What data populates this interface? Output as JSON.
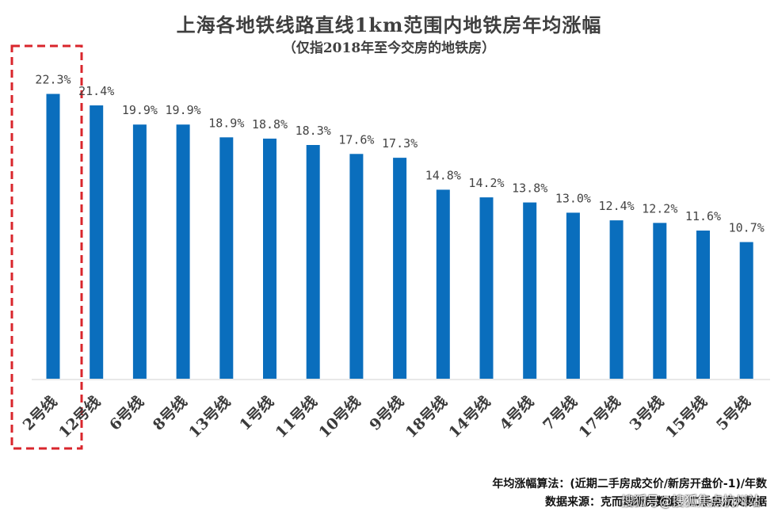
{
  "chart_data": {
    "type": "bar",
    "title": "上海各地铁线路直线1km范围内地铁房年均涨幅",
    "subtitle": "（仅指2018年至今交房的地铁房）",
    "categories": [
      "2号线",
      "12号线",
      "6号线",
      "8号线",
      "13号线",
      "1号线",
      "11号线",
      "10号线",
      "9号线",
      "18号线",
      "14号线",
      "4号线",
      "7号线",
      "17号线",
      "3号线",
      "15号线",
      "5号线"
    ],
    "values": [
      22.3,
      21.4,
      19.9,
      19.9,
      18.9,
      18.8,
      18.3,
      17.6,
      17.3,
      14.8,
      14.2,
      13.8,
      13.0,
      12.4,
      12.2,
      11.6,
      10.7
    ],
    "value_labels": [
      "22.3%",
      "21.4%",
      "19.9%",
      "19.9%",
      "18.9%",
      "18.8%",
      "18.3%",
      "17.6%",
      "17.3%",
      "14.8%",
      "14.2%",
      "13.8%",
      "13.0%",
      "12.4%",
      "12.2%",
      "11.6%",
      "10.7%"
    ],
    "ylim": [
      0,
      25
    ],
    "grid": false,
    "bar_color": "#0a6ebd",
    "highlight_color": "#d9262c",
    "highlight_category": "2号线"
  },
  "footnotes": {
    "method": "年均涨幅算法：(近期二手房成交价/新房开盘价-1)/年数",
    "source": "数据来源：克而瑞新房数据、二手房成交数据"
  },
  "watermark": "搜狐号@搜狐焦点杭州站"
}
